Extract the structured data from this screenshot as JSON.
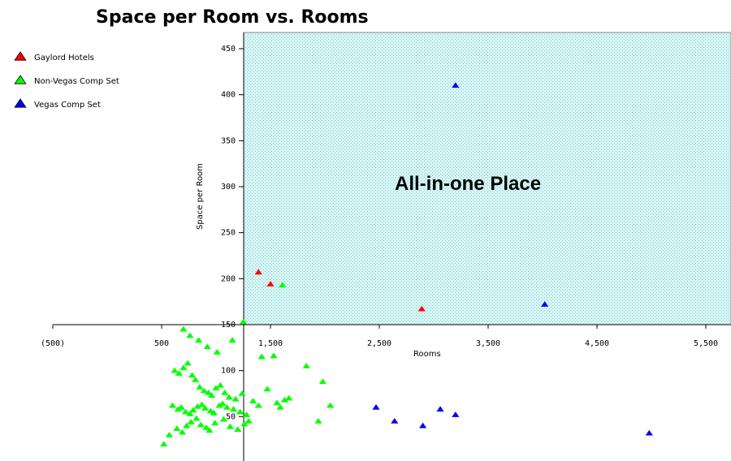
{
  "chart_data": {
    "type": "scatter",
    "title": "Space per Room vs. Rooms",
    "xlabel": "Rooms",
    "ylabel": "Space per Room",
    "xlim": [
      -500,
      5500
    ],
    "ylim": [
      0,
      450
    ],
    "x_ticks": [
      -500,
      500,
      1500,
      2500,
      3500,
      4500,
      5500
    ],
    "x_tick_labels": [
      "(500)",
      "500",
      "1,500",
      "2,500",
      "3,500",
      "4,500",
      "5,500"
    ],
    "y_ticks": [
      50,
      100,
      150,
      200,
      250,
      300,
      350,
      400,
      450
    ],
    "y_tick_labels": [
      "50",
      "100",
      "150",
      "200",
      "250",
      "300",
      "350",
      "400",
      "450"
    ],
    "annotation": "All-in-one Place",
    "shaded_region": "quadrant x > 1,300 and y > 150, light cyan dotted pattern",
    "legend_position": "top-left",
    "grid": false,
    "series": [
      {
        "name": "Gaylord Hotels",
        "color": "#ff0000",
        "x": [
          1390,
          1500,
          2890
        ],
        "y": [
          207,
          194,
          167
        ]
      },
      {
        "name": "Non-Vegas Comp Set",
        "color": "#00ff00",
        "x": [
          600,
          650,
          680,
          720,
          760,
          790,
          830,
          870,
          900,
          950,
          980,
          1030,
          1060,
          1100,
          1160,
          1220,
          1280,
          620,
          660,
          700,
          740,
          780,
          810,
          850,
          890,
          930,
          960,
          1000,
          1040,
          1080,
          1120,
          1180,
          1240,
          640,
          690,
          730,
          770,
          820,
          860,
          910,
          940,
          990,
          1070,
          1130,
          1200,
          1260,
          1300,
          700,
          760,
          840,
          920,
          1010,
          1150,
          1250,
          1420,
          1530,
          1610,
          520,
          570,
          1340,
          1390,
          1470,
          1560,
          1590,
          1630,
          1670,
          1830,
          1940,
          1980,
          2050
        ],
        "y": [
          62,
          58,
          60,
          55,
          53,
          57,
          61,
          63,
          59,
          56,
          54,
          62,
          64,
          60,
          58,
          55,
          52,
          100,
          97,
          103,
          108,
          95,
          90,
          82,
          78,
          76,
          73,
          81,
          84,
          76,
          71,
          69,
          75,
          37,
          33,
          40,
          44,
          48,
          41,
          38,
          35,
          43,
          47,
          39,
          36,
          42,
          45,
          145,
          138,
          133,
          126,
          120,
          133,
          153,
          115,
          116,
          193,
          20,
          30,
          67,
          62,
          80,
          65,
          60,
          68,
          70,
          105,
          45,
          88,
          62
        ]
      },
      {
        "name": "Vegas Comp Set",
        "color": "#0000ff",
        "x": [
          3200,
          4020,
          2470,
          2640,
          2900,
          3060,
          3200,
          4980
        ],
        "y": [
          410,
          172,
          60,
          45,
          40,
          58,
          52,
          32
        ]
      }
    ]
  }
}
